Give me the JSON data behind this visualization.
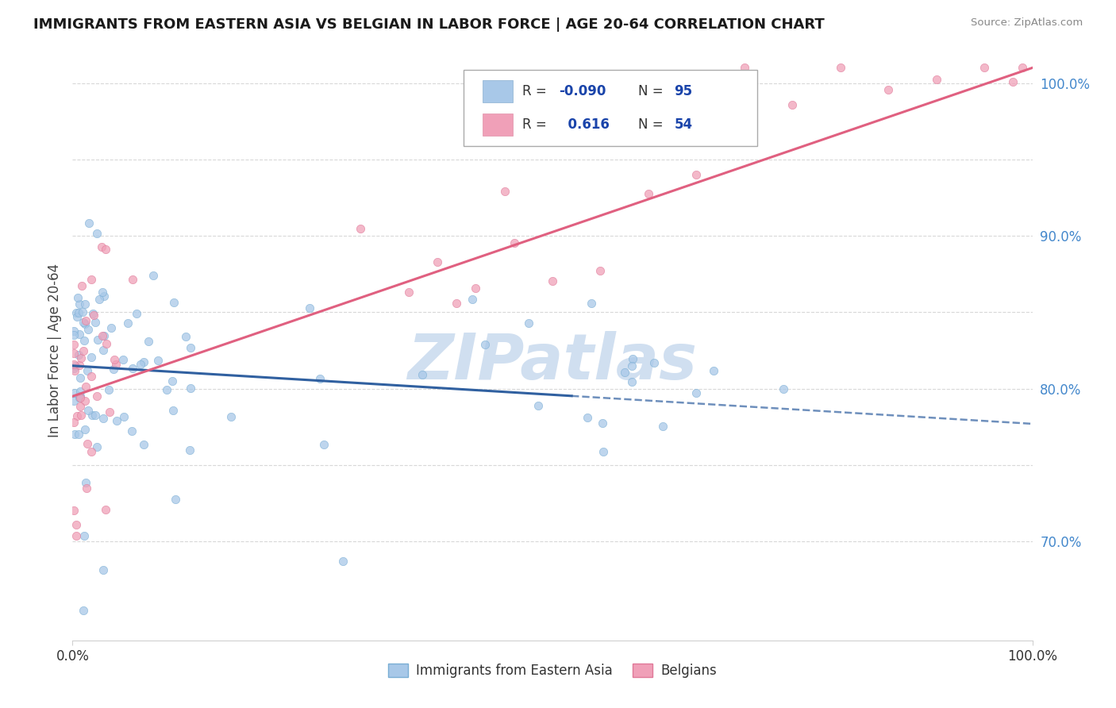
{
  "title": "IMMIGRANTS FROM EASTERN ASIA VS BELGIAN IN LABOR FORCE | AGE 20-64 CORRELATION CHART",
  "source": "Source: ZipAtlas.com",
  "ylabel": "In Labor Force | Age 20-64",
  "xlim": [
    0.0,
    1.0
  ],
  "ylim": [
    0.635,
    1.015
  ],
  "ytick_vals": [
    0.7,
    0.8,
    0.9,
    1.0
  ],
  "ytick_labels": [
    "70.0%",
    "80.0%",
    "90.0%",
    "100.0%"
  ],
  "ygrid_vals": [
    0.7,
    0.75,
    0.8,
    0.85,
    0.9,
    0.95,
    1.0
  ],
  "series1_label": "Immigrants from Eastern Asia",
  "series1_R": -0.09,
  "series1_N": 95,
  "series1_color": "#a8c8e8",
  "series1_edge_color": "#7aaed4",
  "series1_line_color": "#3060a0",
  "series2_label": "Belgians",
  "series2_R": 0.616,
  "series2_N": 54,
  "series2_color": "#f0a0b8",
  "series2_edge_color": "#e07898",
  "series2_line_color": "#e06080",
  "watermark": "ZIPatlas",
  "watermark_color": "#d0dff0",
  "legend_R_color": "#1a44aa",
  "background_color": "#ffffff",
  "series1_seed": 42,
  "series2_seed": 77
}
